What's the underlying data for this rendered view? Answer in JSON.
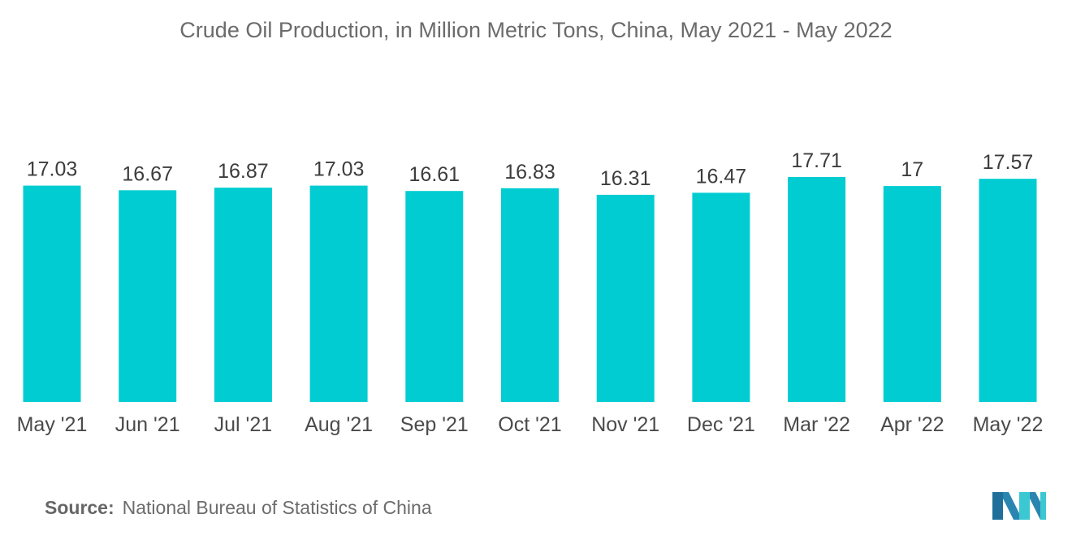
{
  "colors": {
    "bar": "#00CCD1",
    "logo_dark": "#1f6f9a",
    "logo_light": "#3cc8d2"
  },
  "source": {
    "label": "Source:",
    "text": "National Bureau of Statistics of China"
  },
  "logo": {
    "icon": "mordor-intelligence-logo-icon"
  },
  "chart_data": {
    "type": "bar",
    "title": "Crude Oil Production, in Million Metric Tons, China, May 2021 - May 2022",
    "xlabel": "",
    "ylabel": "",
    "categories": [
      "May '21",
      "Jun '21",
      "Jul '21",
      "Aug '21",
      "Sep '21",
      "Oct '21",
      "Nov '21",
      "Dec '21",
      "Mar '22",
      "Apr '22",
      "May '22"
    ],
    "values": [
      17.03,
      16.67,
      16.87,
      17.03,
      16.61,
      16.83,
      16.31,
      16.47,
      17.71,
      17,
      17.57
    ],
    "value_labels": [
      "17.03",
      "16.67",
      "16.87",
      "17.03",
      "16.61",
      "16.83",
      "16.31",
      "16.47",
      "17.71",
      "17",
      "17.57"
    ],
    "ylim": [
      0,
      17.71
    ],
    "grid": false,
    "legend": "none"
  }
}
